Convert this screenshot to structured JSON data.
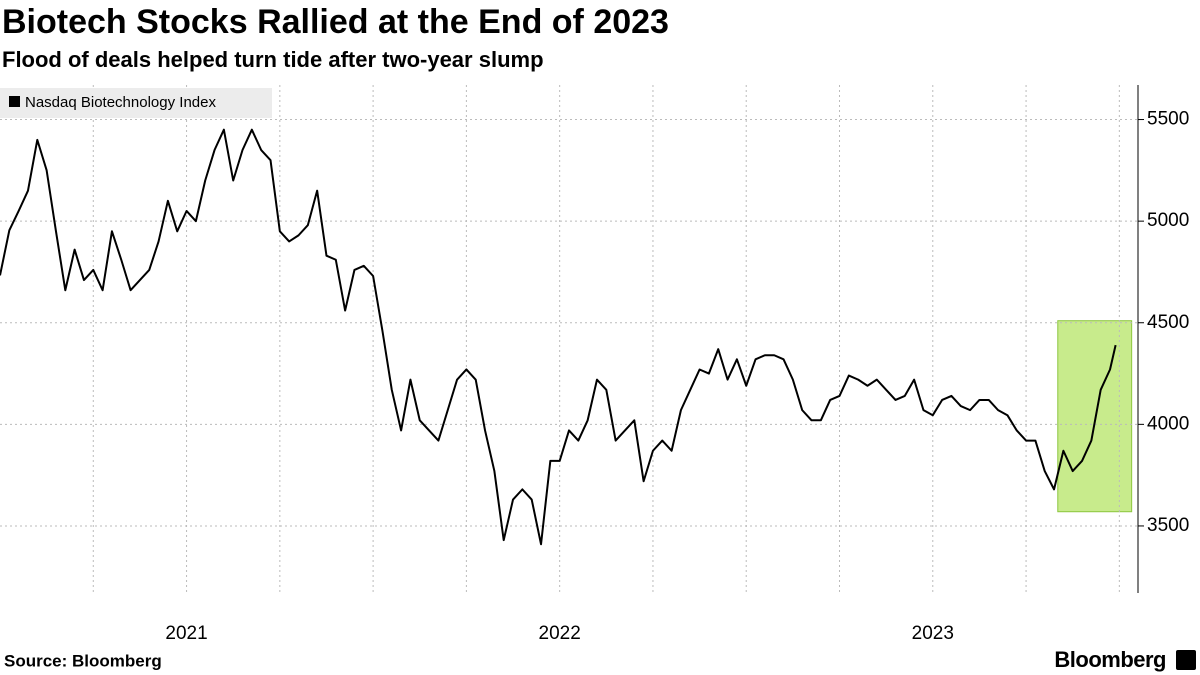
{
  "chart_data": {
    "type": "line",
    "title": "Biotech Stocks Rallied at the End of 2023",
    "subtitle": "Flood of deals helped turn tide after two-year slump",
    "source": "Source: Bloomberg",
    "logo": "Bloomberg",
    "x": [
      2021.0,
      2021.025,
      2021.05,
      2021.075,
      2021.1,
      2021.125,
      2021.15,
      2021.175,
      2021.2,
      2021.225,
      2021.25,
      2021.275,
      2021.3,
      2021.325,
      2021.35,
      2021.375,
      2021.4,
      2021.425,
      2021.45,
      2021.475,
      2021.5,
      2021.525,
      2021.55,
      2021.575,
      2021.6,
      2021.625,
      2021.65,
      2021.675,
      2021.7,
      2021.725,
      2021.75,
      2021.775,
      2021.8,
      2021.825,
      2021.85,
      2021.875,
      2021.9,
      2021.925,
      2021.95,
      2021.975,
      2022.0,
      2022.025,
      2022.05,
      2022.075,
      2022.1,
      2022.125,
      2022.15,
      2022.175,
      2022.2,
      2022.225,
      2022.25,
      2022.275,
      2022.3,
      2022.325,
      2022.35,
      2022.375,
      2022.4,
      2022.425,
      2022.45,
      2022.475,
      2022.5,
      2022.525,
      2022.55,
      2022.575,
      2022.6,
      2022.625,
      2022.65,
      2022.675,
      2022.7,
      2022.725,
      2022.75,
      2022.775,
      2022.8,
      2022.825,
      2022.85,
      2022.875,
      2022.9,
      2022.925,
      2022.95,
      2022.975,
      2023.0,
      2023.025,
      2023.05,
      2023.075,
      2023.1,
      2023.125,
      2023.15,
      2023.175,
      2023.2,
      2023.225,
      2023.25,
      2023.275,
      2023.3,
      2023.325,
      2023.35,
      2023.375,
      2023.4,
      2023.425,
      2023.45,
      2023.475,
      2023.5,
      2023.525,
      2023.55,
      2023.575,
      2023.6,
      2023.625,
      2023.65,
      2023.675,
      2023.7,
      2023.725,
      2023.75,
      2023.775,
      2023.8,
      2023.825,
      2023.85,
      2023.875,
      2023.9,
      2023.925,
      2023.95,
      2023.975,
      2023.99
    ],
    "series": [
      {
        "name": "Nasdaq Biotechnology Index",
        "color": "#000000",
        "values": [
          4733,
          4955,
          5050,
          5150,
          5400,
          5250,
          4950,
          4660,
          4860,
          4710,
          4760,
          4660,
          4950,
          4810,
          4660,
          4710,
          4760,
          4900,
          5100,
          4950,
          5050,
          5000,
          5200,
          5350,
          5450,
          5200,
          5350,
          5450,
          5350,
          5300,
          4950,
          4900,
          4930,
          4980,
          5150,
          4830,
          4810,
          4560,
          4760,
          4780,
          4730,
          4460,
          4170,
          3970,
          4220,
          4020,
          3970,
          3920,
          4070,
          4220,
          4270,
          4220,
          3970,
          3770,
          3430,
          3630,
          3680,
          3630,
          3410,
          3820,
          3820,
          3970,
          3920,
          4020,
          4220,
          4170,
          3920,
          3970,
          4020,
          3720,
          3870,
          3920,
          3870,
          4070,
          4170,
          4270,
          4250,
          4370,
          4220,
          4320,
          4190,
          4320,
          4340,
          4340,
          4320,
          4220,
          4070,
          4020,
          4020,
          4120,
          4140,
          4240,
          4220,
          4190,
          4220,
          4170,
          4120,
          4140,
          4220,
          4070,
          4045,
          4120,
          4140,
          4090,
          4070,
          4120,
          4120,
          4070,
          4045,
          3970,
          3920,
          3920,
          3770,
          3680,
          3870,
          3770,
          3820,
          3920,
          4170,
          4270,
          4390
        ]
      }
    ],
    "xlim": [
      2021,
      2024.05
    ],
    "xticks": [
      {
        "value": 2021.5,
        "label": "2021"
      },
      {
        "value": 2022.5,
        "label": "2022"
      },
      {
        "value": 2023.5,
        "label": "2023"
      }
    ],
    "xgrid": [
      2021.25,
      2021.5,
      2021.75,
      2022,
      2022.25,
      2022.5,
      2022.75,
      2023,
      2023.25,
      2023.5,
      2023.75,
      2024
    ],
    "ylim": [
      3170,
      5670
    ],
    "yticks": [
      3500,
      4000,
      4500,
      5000,
      5500
    ],
    "grid": true,
    "highlight": {
      "xlim": [
        2023.835,
        2024.033
      ],
      "ylim": [
        3570,
        4510
      ],
      "color": "#c8eb8c",
      "edge": "#8cc63f"
    }
  }
}
